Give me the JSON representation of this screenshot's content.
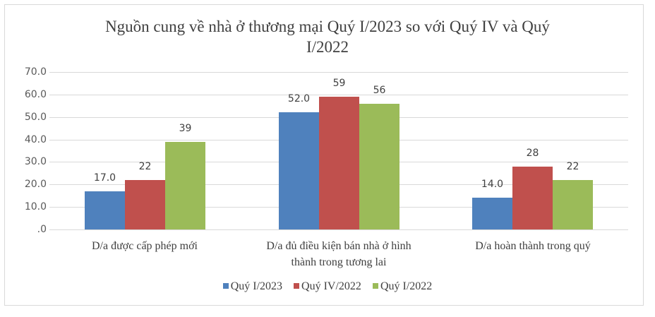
{
  "chart_data": {
    "type": "bar",
    "title": "Nguồn cung về nhà ở thương mại Quý I/2023 so với Quý IV và Quý I/2022",
    "title_lines": [
      "Nguồn cung về nhà ở thương mại Quý I/2023 so với Quý IV và Quý",
      "I/2022"
    ],
    "categories": [
      "D/a được cấp phép mới",
      "D/a đủ điều kiện bán nhà ở hình thành trong tương lai",
      "D/a hoàn thành trong quý"
    ],
    "category_lines": [
      [
        "D/a được cấp phép mới"
      ],
      [
        "D/a đủ điều kiện bán nhà ở hình",
        "thành trong tương lai"
      ],
      [
        "D/a hoàn thành trong quý"
      ]
    ],
    "series": [
      {
        "name": "Quý I/2023",
        "color": "#4f81bd",
        "values": [
          17.0,
          52.0,
          14.0
        ],
        "labels": [
          "17.0",
          "52.0",
          "14.0"
        ]
      },
      {
        "name": "Quý IV/2022",
        "color": "#c0504d",
        "values": [
          22,
          59,
          28
        ],
        "labels": [
          "22",
          "59",
          "28"
        ]
      },
      {
        "name": "Quý I/2022",
        "color": "#9bbb59",
        "values": [
          39,
          56,
          22
        ],
        "labels": [
          "39",
          "56",
          "22"
        ]
      }
    ],
    "xlabel": "",
    "ylabel": "",
    "ylim": [
      0,
      70
    ],
    "yticks": [
      ".0",
      "10.0",
      "20.0",
      "30.0",
      "40.0",
      "50.0",
      "60.0",
      "70.0"
    ],
    "grid": true,
    "legend_position": "bottom"
  }
}
